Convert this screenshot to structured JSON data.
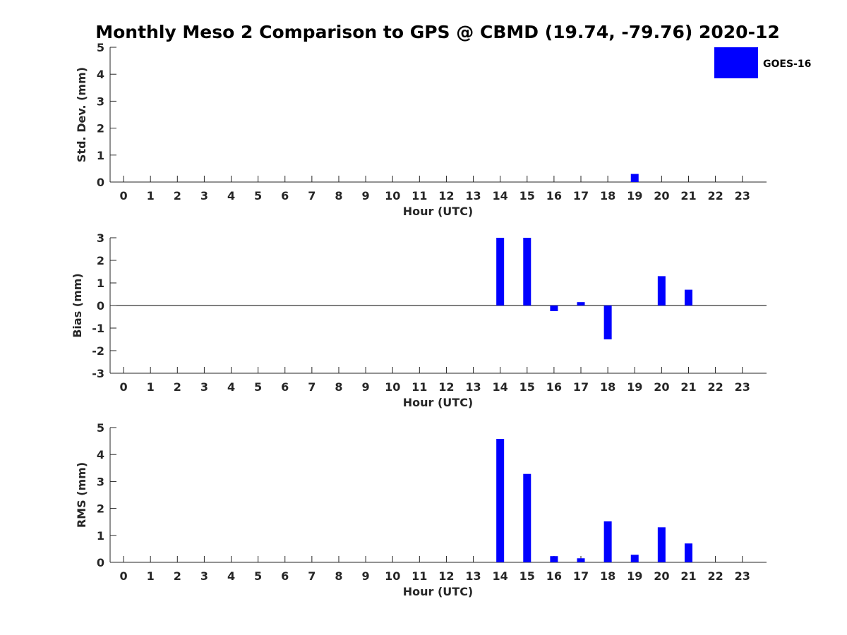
{
  "title": "Monthly Meso 2 Comparison to GPS @ CBMD (19.74, -79.76) 2020-12",
  "legend": {
    "label": "GOES-16",
    "color": "#0000ff",
    "placement": "top-right"
  },
  "chart_data": [
    {
      "type": "bar",
      "xlabel": "Hour (UTC)",
      "ylabel": "Std. Dev. (mm)",
      "ylim": [
        0,
        5
      ],
      "yticks": [
        "0",
        "1",
        "2",
        "3",
        "4",
        "5"
      ],
      "categories": [
        "0",
        "1",
        "2",
        "3",
        "4",
        "5",
        "6",
        "7",
        "8",
        "9",
        "10",
        "11",
        "12",
        "13",
        "14",
        "15",
        "16",
        "17",
        "18",
        "19",
        "20",
        "21",
        "22",
        "23"
      ],
      "values": [
        0,
        0,
        0,
        0,
        0,
        0,
        0,
        0,
        0,
        0,
        0,
        0,
        0,
        0,
        0,
        0,
        0,
        0,
        0,
        0.3,
        0,
        0,
        0,
        0
      ],
      "grid": false
    },
    {
      "type": "bar",
      "xlabel": "Hour (UTC)",
      "ylabel": "Bias (mm)",
      "ylim": [
        -3,
        3
      ],
      "yticks": [
        "-3",
        "-2",
        "-1",
        "0",
        "1",
        "2",
        "3"
      ],
      "categories": [
        "0",
        "1",
        "2",
        "3",
        "4",
        "5",
        "6",
        "7",
        "8",
        "9",
        "10",
        "11",
        "12",
        "13",
        "14",
        "15",
        "16",
        "17",
        "18",
        "19",
        "20",
        "21",
        "22",
        "23"
      ],
      "values": [
        0,
        0,
        0,
        0,
        0,
        0,
        0,
        0,
        0,
        0,
        0,
        0,
        0,
        0,
        3.0,
        3.0,
        -0.25,
        0.15,
        -1.5,
        0,
        1.3,
        0.7,
        0,
        0
      ],
      "grid": false
    },
    {
      "type": "bar",
      "xlabel": "Hour (UTC)",
      "ylabel": "RMS (mm)",
      "ylim": [
        0,
        5
      ],
      "yticks": [
        "0",
        "1",
        "2",
        "3",
        "4",
        "5"
      ],
      "categories": [
        "0",
        "1",
        "2",
        "3",
        "4",
        "5",
        "6",
        "7",
        "8",
        "9",
        "10",
        "11",
        "12",
        "13",
        "14",
        "15",
        "16",
        "17",
        "18",
        "19",
        "20",
        "21",
        "22",
        "23"
      ],
      "values": [
        0,
        0,
        0,
        0,
        0,
        0,
        0,
        0,
        0,
        0,
        0,
        0,
        0,
        0,
        4.58,
        3.28,
        0.23,
        0.15,
        1.52,
        0.28,
        1.3,
        0.7,
        0,
        0
      ],
      "grid": false
    }
  ]
}
